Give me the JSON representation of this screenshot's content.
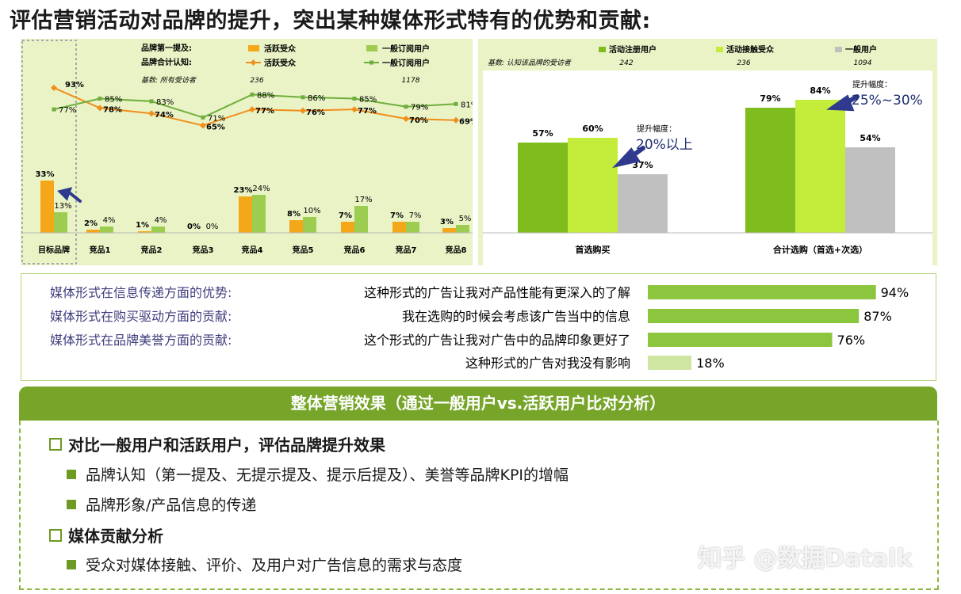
{
  "title": "评估营销活动对品牌的提升，突出某种媒体形式特有的优势和贡献:",
  "chart_data": [
    {
      "type": "bar+line",
      "categories": [
        "目标品牌",
        "竞品1",
        "竞品2",
        "竞品3",
        "竞品4",
        "竞品5",
        "竞品6",
        "竞品7",
        "竞品8"
      ],
      "legend": {
        "bars_label": "品牌第一提及:",
        "lines_label": "品牌合计认知:",
        "bars": [
          "活跃受众",
          "一般订阅用户"
        ],
        "lines": [
          "活跃受众",
          "一般订阅用户"
        ],
        "base_label": "基数: 所有受访者",
        "base_values": [
          "236",
          "1178"
        ]
      },
      "bar_series": [
        {
          "name": "活跃受众",
          "values": [
            33,
            2,
            1,
            0,
            23,
            8,
            7,
            7,
            3
          ]
        },
        {
          "name": "一般订阅用户",
          "values": [
            13,
            4,
            4,
            0,
            24,
            10,
            17,
            7,
            5
          ]
        }
      ],
      "line_series": [
        {
          "name": "活跃受众",
          "values": [
            93,
            78,
            74,
            65,
            77,
            76,
            77,
            70,
            69
          ]
        },
        {
          "name": "一般订阅用户",
          "values": [
            77,
            85,
            83,
            71,
            88,
            86,
            85,
            79,
            81
          ]
        }
      ],
      "colors": {
        "orange": "#f5a71a",
        "green": "#9ccc50",
        "line_orange": "#f28e1a",
        "line_green": "#6fae3c"
      }
    },
    {
      "type": "bar",
      "categories": [
        "首选购买",
        "合计选购（首选+次选）"
      ],
      "legend": {
        "series": [
          "活动注册用户",
          "活动接触受众",
          "一般用户"
        ],
        "base_label": "基数: 认知该品牌的受访者",
        "base_values": [
          "242",
          "236",
          "1094"
        ]
      },
      "series": [
        {
          "name": "活动注册用户",
          "values": [
            57,
            79
          ]
        },
        {
          "name": "活动接触受众",
          "values": [
            60,
            84
          ]
        },
        {
          "name": "一般用户",
          "values": [
            37,
            54
          ]
        }
      ],
      "annotations": [
        {
          "label": "提升幅度：",
          "text": "20%以上"
        },
        {
          "label": "提升幅度：",
          "text": "25%~30%"
        }
      ],
      "colors": [
        "#7fbc1e",
        "#c4ec3a",
        "#c0c0c0"
      ]
    },
    {
      "type": "bar",
      "orientation": "horizontal",
      "rows": [
        {
          "aspect": "媒体形式在信息传递方面的优势:",
          "statement": "这种形式的广告让我对产品性能有更深入的了解",
          "value": 94
        },
        {
          "aspect": "媒体形式在购买驱动方面的贡献:",
          "statement": "我在选购的时候会考虑该广告当中的信息",
          "value": 87
        },
        {
          "aspect": "媒体形式在品牌美誉方面的贡献:",
          "statement": "这个形式的广告让我对广告中的品牌印象更好了",
          "value": 76
        },
        {
          "aspect": "",
          "statement": "这种形式的广告对我没有影响",
          "value": 18
        }
      ],
      "xlim": [
        0,
        100
      ]
    }
  ],
  "summary": {
    "header": "整体营销效果（通过一般用户vs.活跃用户比对分析）",
    "items": [
      {
        "text": "对比一般用户和活跃用户，评估品牌提升效果",
        "subs": [
          "品牌认知（第一提及、无提示提及、提示后提及）、美誉等品牌KPI的增幅",
          "品牌形象/产品信息的传递"
        ]
      },
      {
        "text": "媒体贡献分析",
        "subs": [
          "受众对媒体接触、评价、及用户对广告信息的需求与态度"
        ]
      }
    ]
  },
  "watermark": "知乎 @数据Datalk"
}
